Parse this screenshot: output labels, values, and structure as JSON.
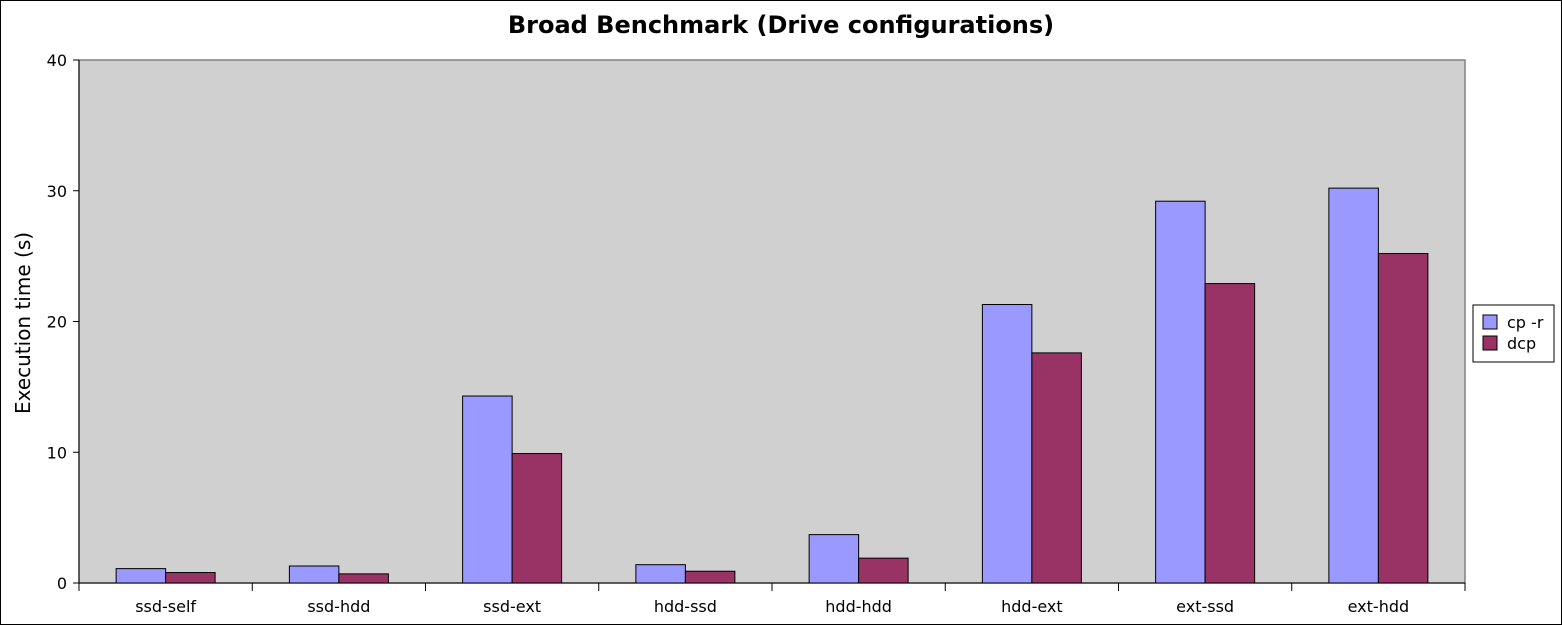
{
  "chart_data": {
    "type": "bar",
    "title": "Broad Benchmark (Drive configurations)",
    "xlabel": "",
    "ylabel": "Execution time (s)",
    "ylim": [
      0,
      40
    ],
    "yticks": [
      0,
      10,
      20,
      30,
      40
    ],
    "grid": false,
    "legend_position": "right",
    "plot_background": "#d0d0d0",
    "categories": [
      "ssd-self",
      "ssd-hdd",
      "ssd-ext",
      "hdd-ssd",
      "hdd-hdd",
      "hdd-ext",
      "ext-ssd",
      "ext-hdd"
    ],
    "series": [
      {
        "name": "cp -r",
        "color": "#9999ff",
        "values": [
          1.1,
          1.3,
          14.3,
          1.4,
          3.7,
          21.3,
          29.2,
          30.2
        ]
      },
      {
        "name": "dcp",
        "color": "#993366",
        "values": [
          0.8,
          0.7,
          9.9,
          0.9,
          1.9,
          17.6,
          22.9,
          25.2
        ]
      }
    ]
  }
}
